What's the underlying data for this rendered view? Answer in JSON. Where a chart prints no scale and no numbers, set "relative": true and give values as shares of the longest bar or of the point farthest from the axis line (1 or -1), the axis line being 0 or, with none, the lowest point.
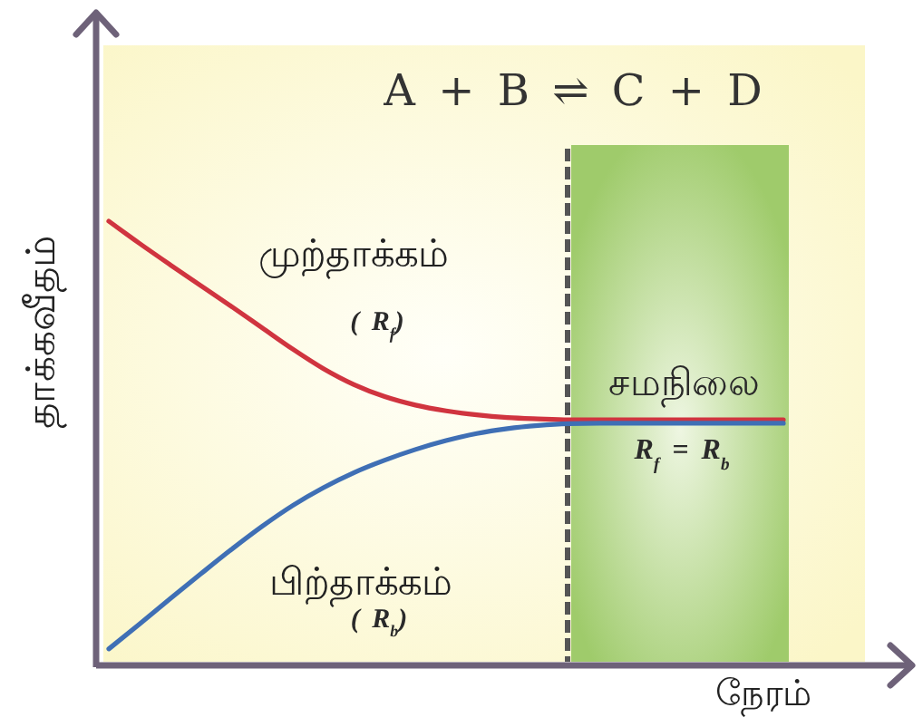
{
  "chart_data": {
    "type": "line",
    "relative": true,
    "title": "A + B ⇌ C + D",
    "xlabel": "நேரம்",
    "ylabel": "தாக்கவீதம்",
    "categories": [
      null,
      null,
      null,
      null,
      null,
      null,
      null,
      null,
      null,
      null,
      null,
      null,
      null,
      null,
      null,
      null,
      null,
      null,
      null,
      null,
      null,
      null,
      null
    ],
    "series": [
      {
        "name": "முற்தாக்கம்",
        "color": "#d0343f",
        "values": [
          1,
          0.95,
          0.902,
          0.855,
          0.808,
          0.76,
          0.712,
          0.668,
          0.632,
          0.605,
          0.586,
          0.573,
          0.564,
          0.558,
          0.555,
          0.553,
          0.553,
          0.553,
          0.553,
          0.553,
          0.553,
          0.553,
          0.553
        ]
      },
      {
        "name": "பிற்தாக்கம்",
        "color": "#3f6fb5",
        "values": [
          0.037,
          0.093,
          0.15,
          0.206,
          0.261,
          0.313,
          0.36,
          0.4,
          0.434,
          0.462,
          0.486,
          0.506,
          0.522,
          0.533,
          0.54,
          0.544,
          0.545,
          0.545,
          0.545,
          0.545,
          0.545,
          0.545,
          0.545
        ]
      }
    ],
    "annotations": [
      "சமநிலை",
      "( R$_{f}$)",
      "( R$_{b}$)",
      "R$_{f}$ = R$_{b}$"
    ]
  }
}
